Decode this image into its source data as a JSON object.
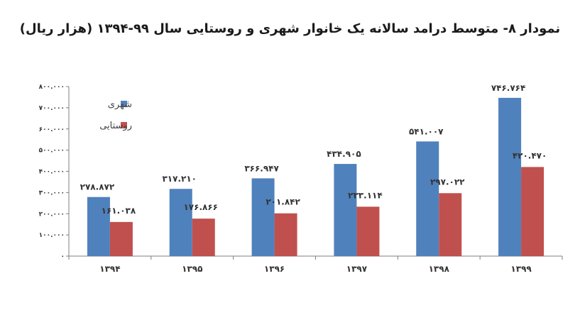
{
  "chart_data": {
    "type": "bar",
    "title": "نمودار ۸- متوسط درامد سالانه یک خانوار شهری و روستایی سال ۹۹-۱۳۹۴ (هزار ریال)",
    "categories": [
      "۱۳۹۴",
      "۱۳۹۵",
      "۱۳۹۶",
      "۱۳۹۷",
      "۱۳۹۸",
      "۱۳۹۹"
    ],
    "series": [
      {
        "name": "شهری",
        "color": "#4f81bd",
        "values": [
          278872,
          317210,
          366947,
          434905,
          541007,
          746764
        ],
        "labels": [
          "۲۷۸.۸۷۲",
          "۳۱۷.۲۱۰",
          "۳۶۶.۹۴۷",
          "۴۳۴.۹۰۵",
          "۵۴۱.۰۰۷",
          "۷۴۶.۷۶۴"
        ]
      },
      {
        "name": "روستایی",
        "color": "#c0504d",
        "values": [
          161038,
          176866,
          201842,
          233114,
          297022,
          420470
        ],
        "labels": [
          "۱۶۱.۰۳۸",
          "۱۷۶.۸۶۶",
          "۲۰۱.۸۴۲",
          "۲۳۳.۱۱۴",
          "۲۹۷.۰۲۲",
          "۴۲۰.۴۷۰"
        ]
      }
    ],
    "ylim": [
      0,
      800000
    ],
    "yticks": [
      0,
      100000,
      200000,
      300000,
      400000,
      500000,
      600000,
      700000,
      800000
    ],
    "ytick_labels": [
      "۰",
      "۱۰۰.۰۰۰",
      "۲۰۰.۰۰۰",
      "۳۰۰.۰۰۰",
      "۴۰۰.۰۰۰",
      "۵۰۰.۰۰۰",
      "۶۰۰.۰۰۰",
      "۷۰۰.۰۰۰",
      "۸۰۰.۰۰۰"
    ],
    "grid": false,
    "legend_position": "top-left",
    "xlabel": "",
    "ylabel": ""
  }
}
